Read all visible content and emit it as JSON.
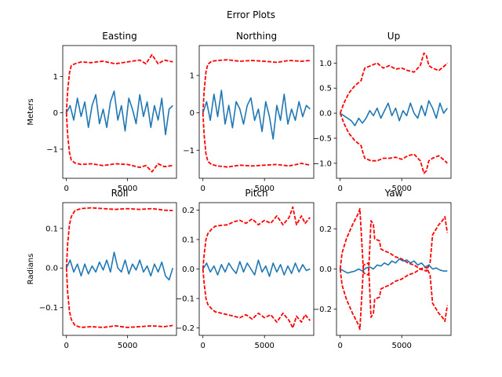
{
  "figure": {
    "suptitle": "Error Plots"
  },
  "chart_data": [
    {
      "type": "line",
      "title": "Easting",
      "ylabel": "Meters",
      "xlim": [
        -300,
        9000
      ],
      "ylim": [
        -1.8,
        1.85
      ],
      "xticks": [
        0,
        5000
      ],
      "yticks": [
        -1,
        0,
        1
      ],
      "series": [
        {
          "color": "#ff0000",
          "style": "dashed",
          "x": [
            0,
            100,
            250,
            400,
            700,
            1200,
            2000,
            3000,
            4000,
            5000,
            6000,
            6500,
            7000,
            7500,
            8000,
            8700
          ],
          "y": [
            0,
            0.6,
            1.1,
            1.3,
            1.35,
            1.4,
            1.38,
            1.42,
            1.35,
            1.4,
            1.45,
            1.35,
            1.6,
            1.35,
            1.45,
            1.4
          ]
        },
        {
          "color": "#ff0000",
          "style": "dashed",
          "x": [
            0,
            100,
            250,
            400,
            700,
            1200,
            2000,
            3000,
            4000,
            5000,
            6000,
            6500,
            7000,
            7500,
            8000,
            8700
          ],
          "y": [
            0,
            -0.6,
            -1.1,
            -1.3,
            -1.38,
            -1.42,
            -1.4,
            -1.45,
            -1.4,
            -1.42,
            -1.5,
            -1.45,
            -1.62,
            -1.4,
            -1.48,
            -1.45
          ]
        },
        {
          "color": "#1f77b4",
          "style": "solid",
          "x": [
            0,
            300,
            600,
            900,
            1200,
            1500,
            1800,
            2100,
            2400,
            2700,
            3000,
            3300,
            3600,
            3900,
            4200,
            4500,
            4800,
            5100,
            5400,
            5700,
            6000,
            6300,
            6600,
            6900,
            7200,
            7500,
            7800,
            8100,
            8400,
            8700
          ],
          "y": [
            0,
            0.2,
            -0.2,
            0.4,
            -0.1,
            0.3,
            -0.4,
            0.2,
            0.5,
            -0.3,
            0.1,
            -0.4,
            0.3,
            0.6,
            -0.2,
            0.2,
            -0.5,
            0.4,
            0.1,
            -0.3,
            0.5,
            -0.1,
            0.3,
            -0.4,
            0.2,
            -0.2,
            0.4,
            -0.6,
            0.1,
            0.2
          ]
        }
      ]
    },
    {
      "type": "line",
      "title": "Northing",
      "ylabel": "",
      "xlim": [
        -300,
        9000
      ],
      "ylim": [
        -1.75,
        1.8
      ],
      "xticks": [
        0,
        5000
      ],
      "yticks": [
        -1,
        0,
        1
      ],
      "series": [
        {
          "color": "#ff0000",
          "style": "dashed",
          "x": [
            0,
            100,
            250,
            400,
            700,
            1200,
            2000,
            3000,
            4000,
            5000,
            6000,
            7000,
            8000,
            8700
          ],
          "y": [
            0,
            0.6,
            1.1,
            1.3,
            1.38,
            1.4,
            1.42,
            1.38,
            1.4,
            1.38,
            1.35,
            1.4,
            1.38,
            1.4
          ]
        },
        {
          "color": "#ff0000",
          "style": "dashed",
          "x": [
            0,
            100,
            250,
            400,
            700,
            1200,
            2000,
            3000,
            4000,
            5000,
            6000,
            7000,
            8000,
            8700
          ],
          "y": [
            0,
            -0.6,
            -1.1,
            -1.3,
            -1.38,
            -1.42,
            -1.45,
            -1.4,
            -1.42,
            -1.4,
            -1.38,
            -1.42,
            -1.35,
            -1.4
          ]
        },
        {
          "color": "#1f77b4",
          "style": "solid",
          "x": [
            0,
            300,
            600,
            900,
            1200,
            1500,
            1800,
            2100,
            2400,
            2700,
            3000,
            3300,
            3600,
            3900,
            4200,
            4500,
            4800,
            5100,
            5400,
            5700,
            6000,
            6300,
            6600,
            6900,
            7200,
            7500,
            7800,
            8100,
            8400,
            8700
          ],
          "y": [
            0,
            0.3,
            -0.2,
            0.5,
            -0.1,
            0.6,
            -0.3,
            0.2,
            -0.4,
            0.3,
            0.1,
            -0.3,
            0.2,
            0.4,
            -0.2,
            0.1,
            -0.5,
            0.3,
            -0.1,
            -0.7,
            0.2,
            -0.2,
            0.5,
            -0.3,
            0.1,
            -0.2,
            0.3,
            -0.1,
            0.2,
            0.1
          ]
        }
      ]
    },
    {
      "type": "line",
      "title": "Up",
      "ylabel": "",
      "xlim": [
        -300,
        9000
      ],
      "ylim": [
        -1.3,
        1.35
      ],
      "xticks": [
        0,
        5000
      ],
      "yticks": [
        -1.0,
        -0.5,
        0.0,
        0.5,
        1.0
      ],
      "series": [
        {
          "color": "#ff0000",
          "style": "dashed",
          "x": [
            0,
            300,
            700,
            1200,
            1700,
            1800,
            2000,
            2500,
            3000,
            3500,
            4000,
            4500,
            5000,
            5500,
            6000,
            6500,
            6800,
            7000,
            7200,
            7500,
            8000,
            8500,
            8700
          ],
          "y": [
            0,
            0.2,
            0.4,
            0.55,
            0.65,
            0.75,
            0.9,
            0.95,
            1.0,
            0.9,
            0.95,
            0.88,
            0.9,
            0.85,
            0.82,
            0.95,
            1.2,
            1.15,
            0.95,
            0.9,
            0.85,
            0.95,
            1.0
          ]
        },
        {
          "color": "#ff0000",
          "style": "dashed",
          "x": [
            0,
            300,
            700,
            1200,
            1700,
            1800,
            2000,
            2500,
            3000,
            3500,
            4000,
            4500,
            5000,
            5500,
            6000,
            6500,
            6800,
            7000,
            7200,
            7500,
            8000,
            8500,
            8700
          ],
          "y": [
            0,
            -0.2,
            -0.4,
            -0.55,
            -0.65,
            -0.75,
            -0.9,
            -0.95,
            -0.95,
            -0.9,
            -0.9,
            -0.88,
            -0.92,
            -0.85,
            -0.82,
            -0.95,
            -1.2,
            -1.15,
            -0.95,
            -0.9,
            -0.85,
            -0.95,
            -1.0
          ]
        },
        {
          "color": "#1f77b4",
          "style": "solid",
          "x": [
            0,
            300,
            600,
            900,
            1200,
            1500,
            1800,
            2100,
            2400,
            2700,
            3000,
            3300,
            3600,
            3900,
            4200,
            4500,
            4800,
            5100,
            5400,
            5700,
            6000,
            6300,
            6600,
            6900,
            7200,
            7500,
            7800,
            8100,
            8400,
            8700
          ],
          "y": [
            0,
            -0.05,
            -0.1,
            -0.15,
            -0.25,
            -0.1,
            -0.2,
            -0.1,
            0.05,
            -0.05,
            0.1,
            -0.1,
            0.05,
            0.2,
            -0.05,
            0.1,
            -0.15,
            0.05,
            -0.05,
            0.2,
            0.0,
            -0.1,
            0.15,
            -0.05,
            0.25,
            0.1,
            -0.1,
            0.2,
            0.0,
            0.1
          ]
        }
      ]
    },
    {
      "type": "line",
      "title": "Roll",
      "ylabel": "Radians",
      "xlim": [
        -300,
        9000
      ],
      "ylim": [
        -0.17,
        0.165
      ],
      "xticks": [
        0,
        5000
      ],
      "yticks": [
        -0.1,
        0.0,
        0.1
      ],
      "series": [
        {
          "color": "#ff0000",
          "style": "dashed",
          "x": [
            0,
            100,
            250,
            400,
            700,
            1200,
            2000,
            3000,
            4000,
            5000,
            6000,
            7000,
            8000,
            8700
          ],
          "y": [
            0,
            0.06,
            0.11,
            0.13,
            0.145,
            0.15,
            0.152,
            0.15,
            0.148,
            0.15,
            0.148,
            0.15,
            0.146,
            0.145
          ]
        },
        {
          "color": "#ff0000",
          "style": "dashed",
          "x": [
            0,
            100,
            250,
            400,
            700,
            1200,
            2000,
            3000,
            4000,
            5000,
            6000,
            7000,
            8000,
            8700
          ],
          "y": [
            0,
            -0.06,
            -0.11,
            -0.13,
            -0.145,
            -0.15,
            -0.148,
            -0.15,
            -0.146,
            -0.15,
            -0.148,
            -0.146,
            -0.148,
            -0.145
          ]
        },
        {
          "color": "#1f77b4",
          "style": "solid",
          "x": [
            0,
            300,
            600,
            900,
            1200,
            1500,
            1800,
            2100,
            2400,
            2700,
            3000,
            3300,
            3600,
            3900,
            4200,
            4500,
            4800,
            5100,
            5400,
            5700,
            6000,
            6300,
            6600,
            6900,
            7200,
            7500,
            7800,
            8100,
            8400,
            8700
          ],
          "y": [
            0,
            0.02,
            -0.01,
            0.01,
            -0.02,
            0.01,
            -0.015,
            0.005,
            -0.01,
            0.015,
            -0.005,
            0.02,
            -0.01,
            0.04,
            0.0,
            -0.01,
            0.02,
            -0.015,
            0.01,
            -0.005,
            0.02,
            -0.01,
            0.005,
            -0.02,
            0.01,
            -0.01,
            0.015,
            -0.02,
            -0.03,
            0.0
          ]
        }
      ]
    },
    {
      "type": "line",
      "title": "Pitch",
      "ylabel": "",
      "xlim": [
        -300,
        9000
      ],
      "ylim": [
        -0.225,
        0.225
      ],
      "xticks": [
        0,
        5000
      ],
      "yticks": [
        -0.2,
        -0.1,
        0.0,
        0.1,
        0.2
      ],
      "series": [
        {
          "color": "#ff0000",
          "style": "dashed",
          "x": [
            0,
            100,
            250,
            400,
            700,
            1000,
            1500,
            2000,
            2500,
            3000,
            3500,
            4000,
            4500,
            5000,
            5500,
            6000,
            6500,
            7000,
            7300,
            7600,
            8000,
            8300,
            8700
          ],
          "y": [
            0,
            0.05,
            0.1,
            0.12,
            0.135,
            0.145,
            0.148,
            0.15,
            0.16,
            0.165,
            0.155,
            0.17,
            0.15,
            0.165,
            0.155,
            0.18,
            0.15,
            0.175,
            0.21,
            0.15,
            0.18,
            0.155,
            0.175
          ]
        },
        {
          "color": "#ff0000",
          "style": "dashed",
          "x": [
            0,
            100,
            250,
            400,
            700,
            1000,
            1500,
            2000,
            2500,
            3000,
            3500,
            4000,
            4500,
            5000,
            5500,
            6000,
            6500,
            7000,
            7300,
            7600,
            8000,
            8300,
            8700
          ],
          "y": [
            0,
            -0.05,
            -0.1,
            -0.12,
            -0.135,
            -0.145,
            -0.15,
            -0.155,
            -0.16,
            -0.165,
            -0.155,
            -0.17,
            -0.15,
            -0.165,
            -0.155,
            -0.18,
            -0.15,
            -0.175,
            -0.2,
            -0.16,
            -0.18,
            -0.155,
            -0.175
          ]
        },
        {
          "color": "#1f77b4",
          "style": "solid",
          "x": [
            0,
            300,
            600,
            900,
            1200,
            1500,
            1800,
            2100,
            2400,
            2700,
            3000,
            3300,
            3600,
            3900,
            4200,
            4500,
            4800,
            5100,
            5400,
            5700,
            6000,
            6300,
            6600,
            6900,
            7200,
            7500,
            7800,
            8100,
            8400,
            8700
          ],
          "y": [
            0,
            0.02,
            -0.01,
            0.01,
            -0.02,
            0.015,
            -0.01,
            0.02,
            0.0,
            -0.015,
            0.025,
            -0.01,
            0.02,
            0.0,
            -0.02,
            0.03,
            -0.01,
            0.01,
            -0.025,
            0.02,
            -0.01,
            0.015,
            -0.02,
            0.01,
            -0.015,
            0.02,
            -0.01,
            0.015,
            -0.005,
            0.0
          ]
        }
      ]
    },
    {
      "type": "line",
      "title": "Yaw",
      "ylabel": "",
      "xlim": [
        -300,
        9000
      ],
      "ylim": [
        -0.33,
        0.33
      ],
      "xticks": [
        0,
        5000
      ],
      "yticks": [
        -0.2,
        0.0,
        0.2
      ],
      "series": [
        {
          "color": "#ff0000",
          "style": "dashed",
          "x": [
            0,
            150,
            500,
            1000,
            1500,
            1600,
            1900,
            2300,
            2500,
            2700,
            2800,
            3200,
            3300,
            3600,
            4000,
            4500,
            5000,
            5500,
            6000,
            6500,
            7000,
            7300,
            7500,
            7800,
            8000,
            8300,
            8500,
            8700
          ],
          "y": [
            0,
            0.08,
            0.15,
            0.22,
            0.28,
            0.3,
            -0.02,
            -0.03,
            0.24,
            0.22,
            0.15,
            0.14,
            0.1,
            0.09,
            0.08,
            0.06,
            0.05,
            0.03,
            0.02,
            0.0,
            -0.01,
            0.03,
            0.17,
            0.2,
            0.22,
            0.24,
            0.26,
            0.18
          ]
        },
        {
          "color": "#ff0000",
          "style": "dashed",
          "x": [
            0,
            150,
            500,
            1000,
            1500,
            1600,
            1900,
            2300,
            2500,
            2700,
            2800,
            3200,
            3300,
            3600,
            4000,
            4500,
            5000,
            5500,
            6000,
            6500,
            7000,
            7300,
            7500,
            7800,
            8000,
            8300,
            8500,
            8700
          ],
          "y": [
            0,
            -0.08,
            -0.15,
            -0.22,
            -0.28,
            -0.3,
            0.02,
            0.03,
            -0.24,
            -0.22,
            -0.15,
            -0.14,
            -0.1,
            -0.09,
            -0.08,
            -0.06,
            -0.05,
            -0.03,
            -0.02,
            0.0,
            0.01,
            -0.03,
            -0.17,
            -0.2,
            -0.22,
            -0.24,
            -0.26,
            -0.18
          ]
        },
        {
          "color": "#1f77b4",
          "style": "solid",
          "x": [
            0,
            300,
            600,
            900,
            1200,
            1500,
            1800,
            2100,
            2400,
            2700,
            3000,
            3300,
            3600,
            3900,
            4200,
            4500,
            4800,
            5100,
            5400,
            5700,
            6000,
            6300,
            6600,
            6900,
            7200,
            7500,
            7800,
            8100,
            8400,
            8700
          ],
          "y": [
            0,
            -0.01,
            -0.02,
            -0.015,
            -0.01,
            0.0,
            -0.01,
            0.005,
            0.01,
            0.0,
            0.02,
            0.015,
            0.03,
            0.02,
            0.04,
            0.03,
            0.05,
            0.04,
            0.045,
            0.03,
            0.04,
            0.02,
            0.03,
            0.01,
            0.02,
            0.0,
            0.005,
            -0.005,
            -0.01,
            -0.01
          ]
        }
      ]
    }
  ]
}
